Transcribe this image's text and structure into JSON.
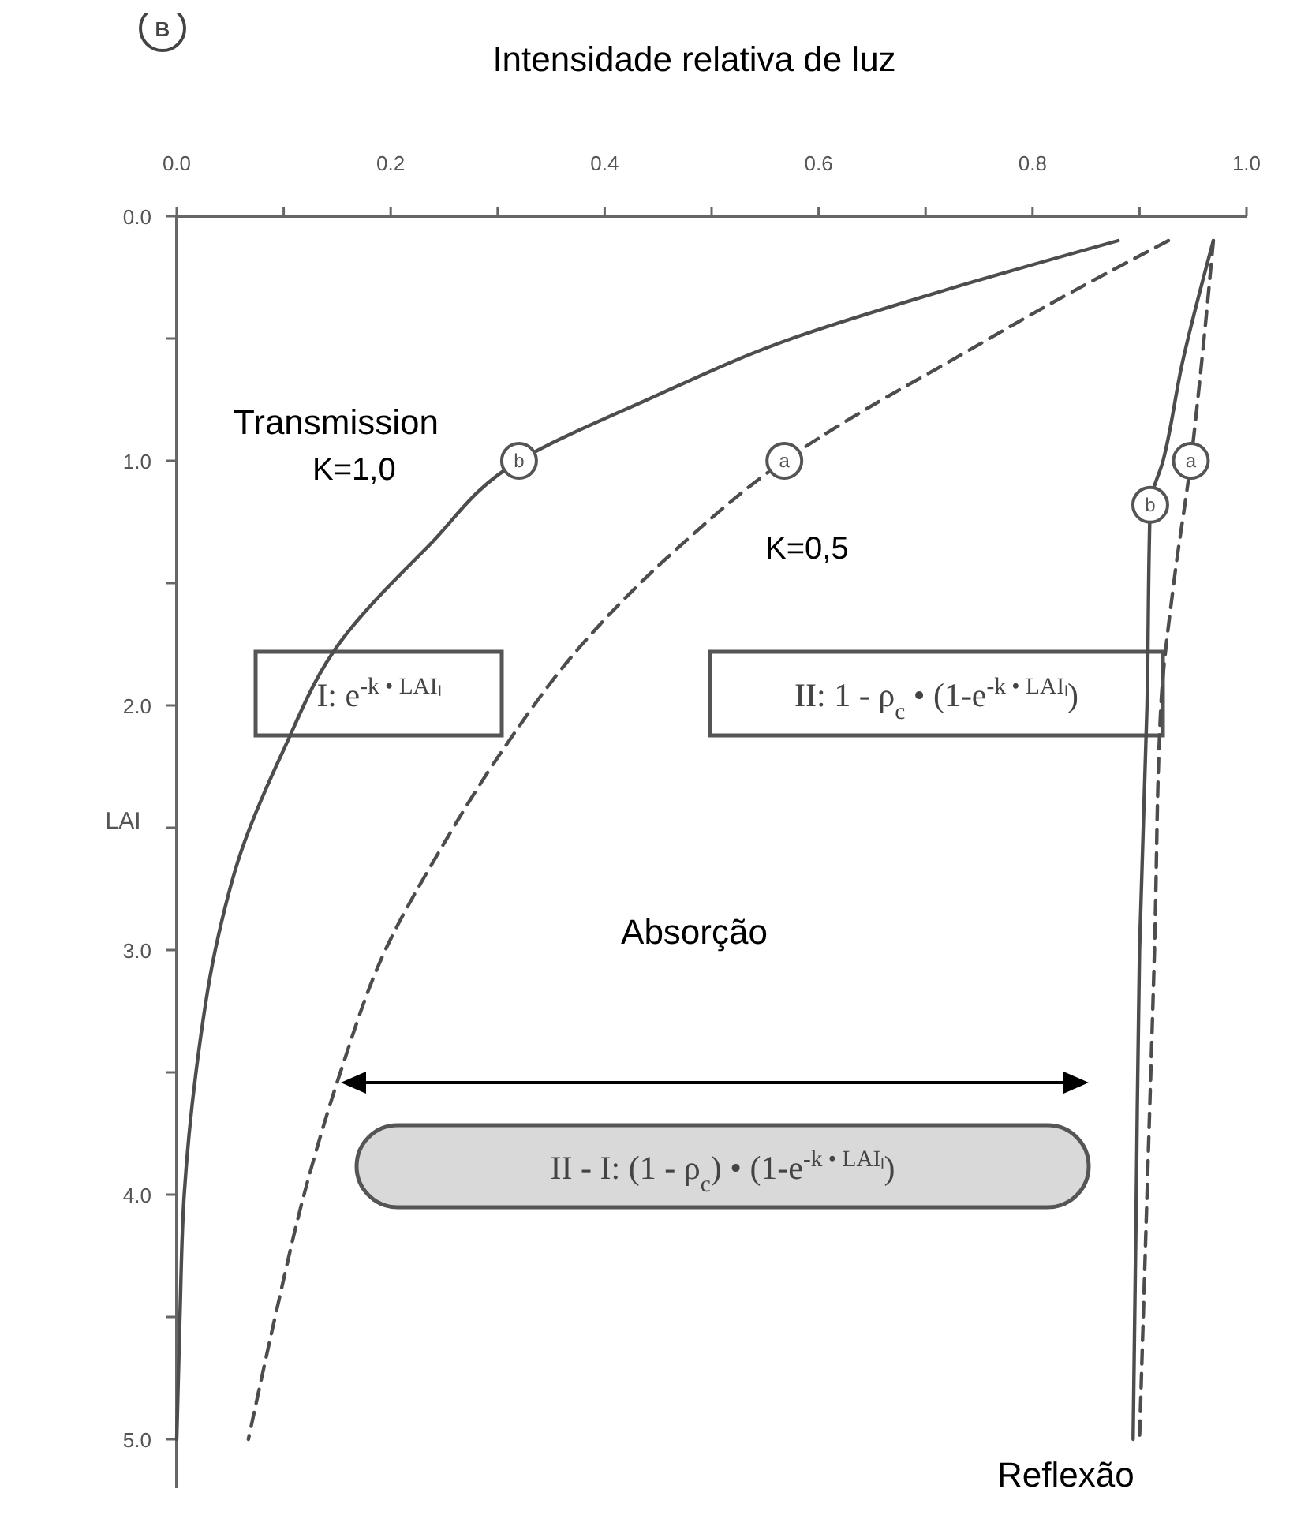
{
  "chart_data": {
    "type": "line",
    "xlabel": "Intensidade relativa de luz",
    "ylabel": "LAI",
    "xlim": [
      0,
      1.0
    ],
    "xticks": [
      {
        "value": 0,
        "label": "0.0"
      },
      {
        "value": 0.1,
        "label": null
      },
      {
        "value": 0.2,
        "label": "0.2"
      },
      {
        "value": 0.3,
        "label": null
      },
      {
        "value": 0.4,
        "label": "0.4"
      },
      {
        "value": 0.5,
        "label": null
      },
      {
        "value": 0.6,
        "label": "0.6"
      },
      {
        "value": 0.7,
        "label": null
      },
      {
        "value": 0.8,
        "label": "0.8"
      },
      {
        "value": 0.9,
        "label": null
      },
      {
        "value": 1.0,
        "label": "1.0"
      }
    ],
    "ylim": [
      5.2,
      0
    ],
    "yticks": [
      {
        "value": 0,
        "label": "0.0"
      },
      {
        "value": 0.5,
        "label": null
      },
      {
        "value": 1,
        "label": "1.0"
      },
      {
        "value": 1.5,
        "label": null
      },
      {
        "value": 2,
        "label": "2.0"
      },
      {
        "value": 2.5,
        "label": null
      },
      {
        "value": 3,
        "label": "3.0"
      },
      {
        "value": 3.5,
        "label": null
      },
      {
        "value": 4,
        "label": "4.0"
      },
      {
        "value": 4.5,
        "label": null
      },
      {
        "value": 5,
        "label": "5.0"
      }
    ],
    "series": [
      {
        "color": "#4d4d4d",
        "line_style": "solid",
        "x": [
          0.88,
          0.72,
          0.575,
          0.44,
          0.32,
          0.235,
          0.153,
          0.098,
          0.06,
          0.036,
          0.018,
          0.007,
          0.003,
          0.0
        ],
        "values": [
          0.1,
          0.3,
          0.5,
          0.75,
          1.0,
          1.35,
          1.74,
          2.2,
          2.6,
          3.0,
          3.5,
          4.0,
          4.5,
          5.0
        ]
      },
      {
        "color": "#4d4d4d",
        "line_style": "dashed",
        "x": [
          0.927,
          0.82,
          0.72,
          0.64,
          0.568,
          0.47,
          0.381,
          0.302,
          0.245,
          0.195,
          0.153,
          0.119,
          0.092,
          0.067
        ],
        "values": [
          0.1,
          0.35,
          0.6,
          0.8,
          1.0,
          1.35,
          1.74,
          2.2,
          2.6,
          3.0,
          3.5,
          4.0,
          4.5,
          5.0
        ]
      },
      {
        "color": "#4d4d4d",
        "line_style": "solid",
        "x": [
          0.969,
          0.94,
          0.922,
          0.91,
          0.907,
          0.9,
          0.897,
          0.894
        ],
        "values": [
          0.1,
          0.6,
          1.0,
          1.18,
          2.0,
          3.0,
          4.0,
          5.0
        ]
      },
      {
        "color": "#4d4d4d",
        "line_style": "dashed",
        "x": [
          0.969,
          0.958,
          0.948,
          0.932,
          0.92,
          0.914,
          0.907,
          0.9
        ],
        "values": [
          0.1,
          0.6,
          1.0,
          1.5,
          2.0,
          3.0,
          4.0,
          5.0
        ]
      }
    ],
    "annotations": [
      "B",
      "Transmission",
      "K=1,0",
      "K=0,5",
      "I: e$^{-k • LAIₗ}$",
      "II: 1 - ρ$_{c}$ • (1-e$^{-k • LAIₗ}$)",
      "Absorção",
      "II - I: (1 - ρ$_{c}$) • (1-e$^{-k • LAIₗ}$)",
      "Reflexão",
      {
        "text": "b",
        "x": 0.32,
        "y": 1.0
      },
      {
        "text": "a",
        "x": 0.568,
        "y": 1.0
      },
      {
        "text": "b",
        "x": 0.91,
        "y": 1.18
      },
      {
        "text": "a",
        "x": 0.948,
        "y": 1.0
      }
    ]
  }
}
